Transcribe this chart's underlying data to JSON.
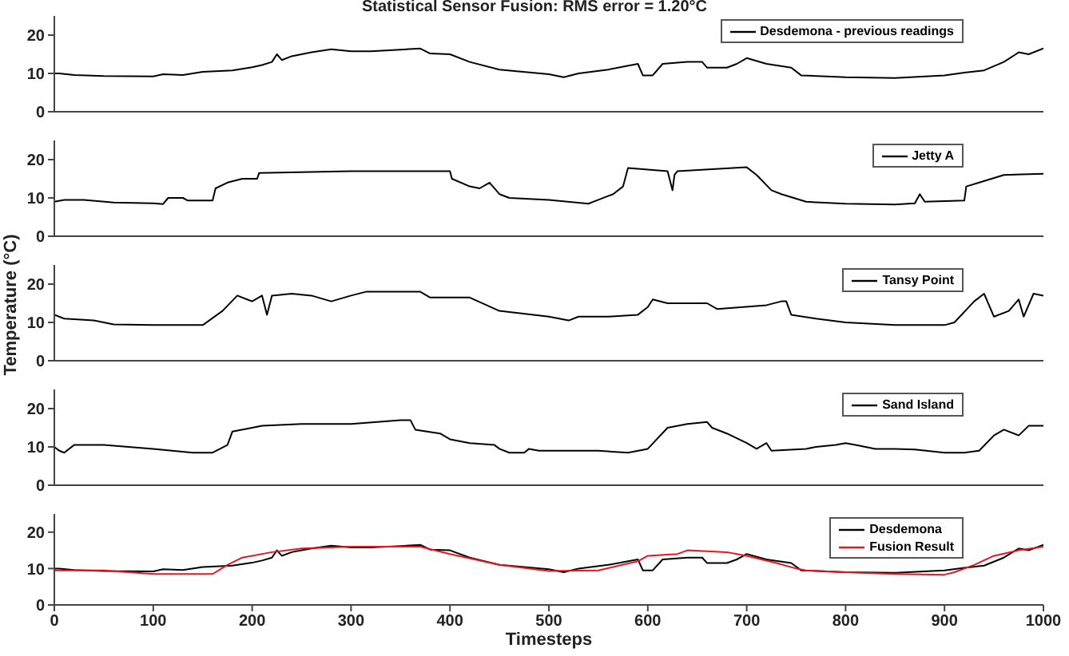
{
  "chart_data": [
    {
      "type": "line",
      "title": "Statistical Sensor Fusion: RMS error = 1.20°C",
      "xlim": [
        0,
        1000
      ],
      "xticks": [
        0,
        100,
        200,
        300,
        400,
        500,
        600,
        700,
        800,
        900,
        1000
      ],
      "ylim": [
        0,
        25
      ],
      "yticks": [
        0,
        10,
        20
      ],
      "tick_labels": "y",
      "legend": "top right",
      "grid": false,
      "marker": "none",
      "line_style": "solid",
      "series": [
        {
          "name": "Desdemona - previous readings",
          "color": "#000000",
          "x": [
            0,
            5,
            20,
            50,
            100,
            110,
            130,
            150,
            180,
            200,
            210,
            220,
            225,
            230,
            240,
            250,
            260,
            280,
            300,
            320,
            350,
            370,
            380,
            400,
            420,
            450,
            500,
            515,
            530,
            560,
            590,
            595,
            605,
            615,
            640,
            655,
            660,
            680,
            690,
            700,
            720,
            745,
            755,
            800,
            850,
            900,
            920,
            940,
            960,
            975,
            985,
            1000
          ],
          "values": [
            10,
            10,
            9.6,
            9.3,
            9.2,
            9.8,
            9.6,
            10.4,
            10.8,
            11.6,
            12.2,
            13,
            15,
            13.5,
            14.5,
            15,
            15.5,
            16.3,
            15.8,
            15.8,
            16.2,
            16.5,
            15.2,
            15,
            13,
            11,
            9.8,
            9,
            10,
            11,
            12.5,
            9.5,
            9.5,
            12.5,
            13,
            13,
            11.5,
            11.5,
            12.5,
            14,
            12.5,
            11.5,
            9.5,
            9,
            8.8,
            9.5,
            10.2,
            10.8,
            13,
            15.5,
            15,
            16.5
          ]
        }
      ]
    },
    {
      "type": "line",
      "xlim": [
        0,
        1000
      ],
      "xticks": [
        0,
        100,
        200,
        300,
        400,
        500,
        600,
        700,
        800,
        900,
        1000
      ],
      "ylim": [
        0,
        25
      ],
      "yticks": [
        0,
        10,
        20
      ],
      "tick_labels": "y",
      "legend": "top right",
      "grid": false,
      "marker": "none",
      "line_style": "solid",
      "series": [
        {
          "name": "Jetty A",
          "color": "#000000",
          "x": [
            0,
            10,
            30,
            60,
            100,
            110,
            115,
            130,
            135,
            160,
            163,
            175,
            190,
            205,
            207,
            300,
            400,
            402,
            420,
            430,
            440,
            450,
            460,
            500,
            540,
            550,
            565,
            575,
            580,
            620,
            625,
            627,
            630,
            700,
            710,
            725,
            735,
            760,
            800,
            850,
            870,
            875,
            880,
            920,
            922,
            935,
            960,
            1000
          ],
          "values": [
            9,
            9.5,
            9.5,
            8.8,
            8.6,
            8.4,
            10,
            10,
            9.3,
            9.3,
            12.5,
            14,
            15,
            15,
            16.5,
            17,
            17,
            15,
            13,
            12.5,
            14,
            11,
            10,
            9.5,
            8.5,
            9.5,
            11,
            13,
            17.8,
            17,
            12,
            16,
            17,
            18,
            16,
            12,
            11,
            9,
            8.5,
            8.3,
            8.6,
            11,
            9,
            9.3,
            13,
            14,
            16,
            16.3
          ]
        }
      ]
    },
    {
      "type": "line",
      "ylabel": "Temperature (°C)",
      "xlim": [
        0,
        1000
      ],
      "xticks": [
        0,
        100,
        200,
        300,
        400,
        500,
        600,
        700,
        800,
        900,
        1000
      ],
      "ylim": [
        0,
        25
      ],
      "yticks": [
        0,
        10,
        20
      ],
      "tick_labels": "y",
      "legend": "top right",
      "grid": false,
      "marker": "none",
      "line_style": "solid",
      "series": [
        {
          "name": "Tansy Point",
          "color": "#000000",
          "x": [
            0,
            10,
            40,
            60,
            100,
            130,
            150,
            170,
            185,
            195,
            200,
            210,
            215,
            220,
            240,
            260,
            280,
            300,
            315,
            370,
            380,
            420,
            450,
            500,
            520,
            530,
            560,
            590,
            600,
            605,
            620,
            660,
            670,
            720,
            735,
            740,
            745,
            770,
            800,
            850,
            900,
            910,
            930,
            940,
            950,
            965,
            975,
            980,
            990,
            1000
          ],
          "values": [
            12,
            11,
            10.5,
            9.5,
            9.3,
            9.3,
            9.3,
            13,
            17,
            16,
            15.5,
            17,
            12,
            17,
            17.5,
            17,
            15.5,
            17,
            18,
            18,
            16.5,
            16.5,
            13,
            11.5,
            10.5,
            11.5,
            11.5,
            12,
            14,
            16,
            15,
            15,
            13.5,
            14.5,
            15.5,
            15.5,
            12,
            11,
            10,
            9.3,
            9.3,
            10,
            15.5,
            17.5,
            11.5,
            13,
            16,
            11.5,
            17.5,
            17
          ]
        }
      ]
    },
    {
      "type": "line",
      "xlim": [
        0,
        1000
      ],
      "xticks": [
        0,
        100,
        200,
        300,
        400,
        500,
        600,
        700,
        800,
        900,
        1000
      ],
      "ylim": [
        0,
        25
      ],
      "yticks": [
        0,
        10,
        20
      ],
      "tick_labels": "y",
      "legend": "top right",
      "grid": false,
      "marker": "none",
      "line_style": "solid",
      "series": [
        {
          "name": "Sand Island",
          "color": "#000000",
          "x": [
            0,
            5,
            10,
            20,
            50,
            100,
            140,
            160,
            175,
            180,
            200,
            210,
            250,
            300,
            350,
            360,
            365,
            390,
            400,
            420,
            445,
            450,
            460,
            475,
            480,
            490,
            550,
            580,
            600,
            620,
            640,
            660,
            665,
            680,
            700,
            710,
            720,
            725,
            760,
            770,
            790,
            800,
            810,
            830,
            850,
            870,
            900,
            920,
            935,
            950,
            960,
            975,
            985,
            1000
          ],
          "values": [
            10,
            9,
            8.5,
            10.5,
            10.5,
            9.5,
            8.5,
            8.5,
            10.5,
            14,
            15,
            15.5,
            16,
            16,
            17,
            17,
            14.5,
            13.5,
            12,
            11,
            10.5,
            9.5,
            8.5,
            8.5,
            9.5,
            9,
            9,
            8.5,
            9.5,
            15,
            16,
            16.5,
            15,
            13.5,
            11,
            9.5,
            11,
            9,
            9.5,
            10,
            10.5,
            11,
            10.5,
            9.5,
            9.5,
            9.3,
            8.5,
            8.5,
            9,
            13,
            14.5,
            13,
            15.5,
            15.5
          ]
        }
      ]
    },
    {
      "type": "line",
      "xlabel": "Timesteps",
      "xlim": [
        0,
        1000
      ],
      "xticks": [
        0,
        100,
        200,
        300,
        400,
        500,
        600,
        700,
        800,
        900,
        1000
      ],
      "ylim": [
        0,
        25
      ],
      "yticks": [
        0,
        10,
        20
      ],
      "legend": "top right",
      "grid": false,
      "marker": "none",
      "line_style": "solid",
      "series": [
        {
          "name": "Desdemona",
          "color": "#000000",
          "x": [
            0,
            5,
            20,
            50,
            100,
            110,
            130,
            150,
            180,
            200,
            210,
            220,
            225,
            230,
            240,
            250,
            260,
            280,
            300,
            320,
            350,
            370,
            380,
            400,
            420,
            450,
            500,
            515,
            530,
            560,
            590,
            595,
            605,
            615,
            640,
            655,
            660,
            680,
            690,
            700,
            720,
            745,
            755,
            800,
            850,
            900,
            920,
            940,
            960,
            975,
            985,
            1000
          ],
          "values": [
            10,
            10,
            9.6,
            9.3,
            9.2,
            9.8,
            9.6,
            10.4,
            10.8,
            11.6,
            12.2,
            13,
            15,
            13.5,
            14.5,
            15,
            15.5,
            16.3,
            15.8,
            15.8,
            16.2,
            16.5,
            15.2,
            15,
            13,
            11,
            9.8,
            9,
            10,
            11,
            12.5,
            9.5,
            9.5,
            12.5,
            13,
            13,
            11.5,
            11.5,
            12.5,
            14,
            12.5,
            11.5,
            9.5,
            9,
            8.8,
            9.5,
            10.2,
            10.8,
            13,
            15.5,
            15,
            16.5
          ]
        },
        {
          "name": "Fusion Result",
          "color": "#e8141e",
          "x": [
            0,
            50,
            100,
            160,
            175,
            190,
            220,
            250,
            300,
            350,
            370,
            400,
            450,
            500,
            550,
            590,
            600,
            630,
            640,
            680,
            700,
            730,
            750,
            760,
            800,
            850,
            900,
            910,
            930,
            950,
            975,
            1000
          ],
          "values": [
            9.5,
            9.5,
            8.5,
            8.5,
            11,
            13,
            14.5,
            15.5,
            16,
            16,
            16,
            14,
            11,
            9.3,
            9.5,
            12,
            13.5,
            14,
            15,
            14.5,
            13.5,
            11.5,
            10,
            9.5,
            9,
            8.5,
            8.3,
            9,
            11,
            13.5,
            15,
            16
          ]
        }
      ]
    }
  ]
}
